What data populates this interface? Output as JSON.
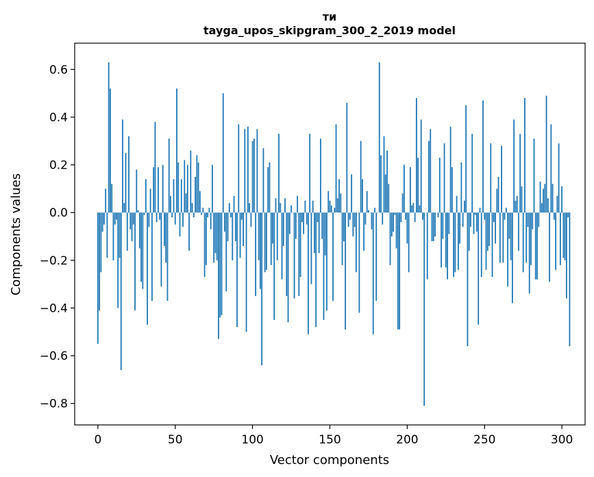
{
  "chart_data": {
    "type": "bar",
    "title_line1": "ти",
    "title_line2": "tayga_upos_skipgram_300_2_2019 model",
    "xlabel": "Vector components",
    "ylabel": "Components values",
    "xlim": [
      -15,
      315
    ],
    "ylim": [
      -0.89,
      0.71
    ],
    "xticks": [
      0,
      50,
      100,
      150,
      200,
      250,
      300
    ],
    "xtick_labels": [
      "0",
      "50",
      "100",
      "150",
      "200",
      "250",
      "300"
    ],
    "yticks": [
      -0.8,
      -0.6,
      -0.4,
      -0.2,
      0.0,
      0.2,
      0.4,
      0.6
    ],
    "ytick_labels": [
      "−0.8",
      "−0.6",
      "−0.4",
      "−0.2",
      "0.0",
      "0.2",
      "0.4",
      "0.6"
    ],
    "bar_color": "#1f77b4",
    "values": [
      -0.55,
      -0.41,
      -0.25,
      -0.08,
      -0.05,
      0.1,
      -0.19,
      0.63,
      0.52,
      0.12,
      -0.2,
      -0.05,
      -0.03,
      -0.4,
      -0.19,
      -0.66,
      0.39,
      0.04,
      0.25,
      -0.16,
      0.32,
      -0.07,
      -0.12,
      -0.05,
      -0.41,
      0.18,
      0.01,
      -0.15,
      -0.29,
      -0.32,
      -0.01,
      0.14,
      -0.47,
      -0.06,
      0.1,
      -0.37,
      0.19,
      0.38,
      -0.04,
      0.19,
      -0.03,
      -0.31,
      0.2,
      -0.14,
      -0.21,
      -0.37,
      0.31,
      0.07,
      -0.02,
      0.14,
      -0.05,
      0.52,
      0.21,
      -0.1,
      0.14,
      -0.06,
      0.22,
      0.08,
      0.2,
      -0.16,
      0.26,
      0.04,
      -0.02,
      0.15,
      0.24,
      0.21,
      0.09,
      -0.01,
      0.02,
      -0.27,
      -0.22,
      -0.02,
      0.02,
      -0.07,
      0.2,
      -0.21,
      -0.17,
      -0.2,
      -0.53,
      -0.44,
      -0.43,
      0.5,
      -0.08,
      -0.33,
      -0.12,
      0.04,
      -0.02,
      -0.2,
      0.07,
      -0.12,
      -0.48,
      0.37,
      -0.19,
      -0.03,
      -0.14,
      0.35,
      -0.5,
      0.36,
      0.04,
      -0.06,
      0.3,
      0.31,
      -0.35,
      0.35,
      -0.2,
      -0.32,
      -0.64,
      0.27,
      -0.25,
      -0.24,
      0.19,
      0.21,
      -0.22,
      -0.13,
      -0.45,
      0.06,
      -0.2,
      0.33,
      0.04,
      -0.28,
      -0.14,
      0.06,
      -0.35,
      -0.46,
      -0.09,
      0.03,
      0.0,
      -0.36,
      -0.11,
      0.07,
      -0.35,
      -0.27,
      -0.04,
      -0.09,
      0.05,
      -0.05,
      -0.51,
      0.33,
      -0.3,
      0.05,
      -0.17,
      -0.48,
      -0.04,
      -0.17,
      0.31,
      -0.11,
      -0.45,
      -0.18,
      -0.41,
      0.09,
      0.05,
      0.03,
      -0.37,
      0.02,
      0.37,
      0.06,
      0.14,
      0.08,
      -0.22,
      -0.12,
      -0.49,
      0.46,
      -0.06,
      -0.03,
      0.16,
      -0.1,
      -0.06,
      -0.25,
      0.0,
      -0.42,
      0.3,
      0.14,
      -0.16,
      -0.05,
      0.09,
      0.01,
      0.0,
      -0.07,
      -0.51,
      0.02,
      -0.37,
      0.0,
      0.63,
      0.24,
      -0.05,
      0.32,
      0.16,
      0.26,
      0.12,
      -0.22,
      -0.1,
      -0.08,
      -0.01,
      -0.15,
      -0.49,
      -0.49,
      -0.04,
      0.08,
      0.2,
      -0.03,
      -0.13,
      -0.25,
      0.19,
      0.03,
      0.04,
      -0.04,
      0.48,
      0.23,
      0.03,
      0.39,
      -0.03,
      -0.81,
      0.0,
      -0.28,
      0.3,
      0.35,
      -0.12,
      -0.12,
      -0.1,
      0.0,
      -0.02,
      0.23,
      -0.23,
      -0.11,
      0.29,
      -0.23,
      -0.28,
      -0.09,
      0.36,
      0.19,
      -0.27,
      -0.25,
      0.07,
      -0.24,
      -0.13,
      0.21,
      -0.06,
      0.05,
      0.45,
      -0.56,
      -0.16,
      -0.06,
      0.33,
      -0.09,
      -0.01,
      -0.08,
      -0.47,
      0.02,
      -0.27,
      0.47,
      -0.03,
      -0.24,
      -0.16,
      -0.14,
      0.29,
      -0.27,
      -0.04,
      -0.13,
      0.1,
      0.15,
      -0.21,
      0.28,
      -0.21,
      -0.03,
      0.02,
      -0.31,
      -0.11,
      -0.2,
      -0.38,
      0.39,
      0.05,
      0.07,
      -0.16,
      0.33,
      0.11,
      -0.25,
      0.48,
      -0.21,
      -0.06,
      -0.34,
      -0.22,
      -0.07,
      0.31,
      -0.28,
      -0.28,
      -0.06,
      0.13,
      0.04,
      0.1,
      0.12,
      0.49,
      0.06,
      -0.29,
      0.37,
      0.12,
      -0.03,
      -0.24,
      0.07,
      0.29,
      -0.22,
      0.11,
      -0.19,
      -0.2,
      -0.36,
      -0.02,
      -0.56
    ]
  }
}
